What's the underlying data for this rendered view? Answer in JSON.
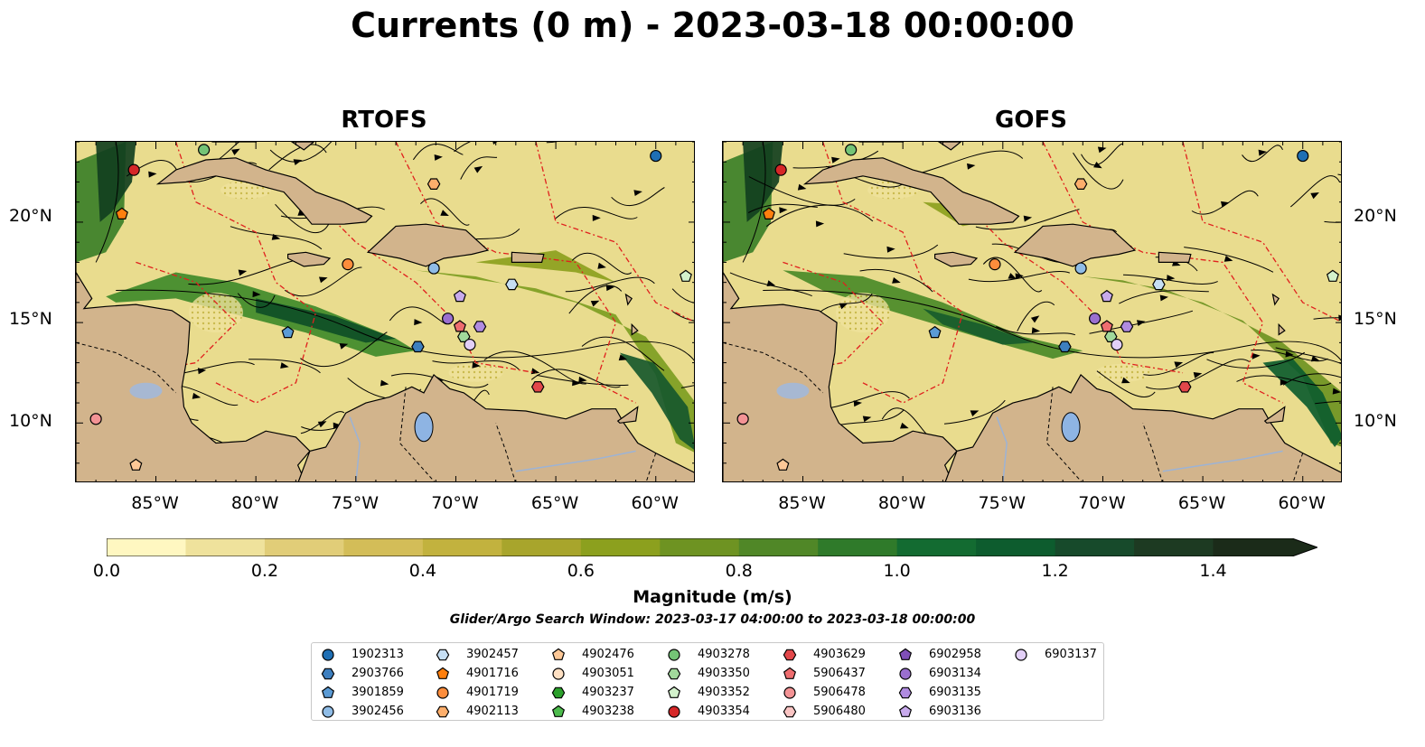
{
  "title": "Currents (0 m) - 2023-03-18 00:00:00",
  "panels": [
    {
      "title": "RTOFS"
    },
    {
      "title": "GOFS"
    }
  ],
  "x_ticks": [
    "85°W",
    "80°W",
    "75°W",
    "70°W",
    "65°W",
    "60°W"
  ],
  "y_ticks": [
    "20°N",
    "15°N",
    "10°N"
  ],
  "colorbar": {
    "label": "Magnitude (m/s)",
    "ticks": [
      "0.0",
      "0.2",
      "0.4",
      "0.6",
      "0.8",
      "1.0",
      "1.2",
      "1.4"
    ],
    "range": [
      0,
      1.5
    ],
    "extend": "max",
    "colors": [
      "#fff7c1",
      "#efe29c",
      "#e1cd78",
      "#d3bd58",
      "#c2b23e",
      "#a8a52c",
      "#8ca01e",
      "#6e9322",
      "#508727",
      "#2f7a2a",
      "#136b31",
      "#0d5c2e",
      "#174a2b",
      "#1d3a22",
      "#1b2b19"
    ]
  },
  "search_window": "Glider/Argo Search Window: 2023-03-17 04:00:00 to 2023-03-18 00:00:00",
  "legend": [
    {
      "label": "1902313",
      "marker": "circle",
      "color": "#1f6fb4"
    },
    {
      "label": "2903766",
      "marker": "hexagon",
      "color": "#3d7fbf"
    },
    {
      "label": "3901859",
      "marker": "pentagon",
      "color": "#5b9bd5"
    },
    {
      "label": "3902456",
      "marker": "circle",
      "color": "#8fbce6"
    },
    {
      "label": "3902457",
      "marker": "hexagon",
      "color": "#c6dff4"
    },
    {
      "label": "4901716",
      "marker": "pentagon",
      "color": "#ff7f0e"
    },
    {
      "label": "4901719",
      "marker": "circle",
      "color": "#fd8d3c"
    },
    {
      "label": "4902113",
      "marker": "hexagon",
      "color": "#fdae6b"
    },
    {
      "label": "4902476",
      "marker": "pentagon",
      "color": "#fdc897"
    },
    {
      "label": "4903051",
      "marker": "circle",
      "color": "#fee0c3"
    },
    {
      "label": "4903237",
      "marker": "hexagon",
      "color": "#2ca02c"
    },
    {
      "label": "4903238",
      "marker": "pentagon",
      "color": "#4cbb4c"
    },
    {
      "label": "4903278",
      "marker": "circle",
      "color": "#74c476"
    },
    {
      "label": "4903350",
      "marker": "hexagon",
      "color": "#a1d99b"
    },
    {
      "label": "4903352",
      "marker": "pentagon",
      "color": "#d3f2cc"
    },
    {
      "label": "4903354",
      "marker": "circle",
      "color": "#d62728"
    },
    {
      "label": "4903629",
      "marker": "hexagon",
      "color": "#e2474a"
    },
    {
      "label": "5906437",
      "marker": "pentagon",
      "color": "#ee6d6f"
    },
    {
      "label": "5906478",
      "marker": "circle",
      "color": "#f39395"
    },
    {
      "label": "5906480",
      "marker": "hexagon",
      "color": "#f9c4c3"
    },
    {
      "label": "6902958",
      "marker": "pentagon",
      "color": "#7f4fb8"
    },
    {
      "label": "6903134",
      "marker": "circle",
      "color": "#9a6fcf"
    },
    {
      "label": "6903135",
      "marker": "hexagon",
      "color": "#b08be0"
    },
    {
      "label": "6903136",
      "marker": "pentagon",
      "color": "#c8aaec"
    },
    {
      "label": "6903137",
      "marker": "circle",
      "color": "#e2cff7"
    }
  ],
  "floats": [
    {
      "id": "1902313",
      "lon": -60.0,
      "lat": 23.3
    },
    {
      "id": "4903278",
      "lon": -82.6,
      "lat": 23.6
    },
    {
      "id": "4903354",
      "lon": -86.1,
      "lat": 22.6
    },
    {
      "id": "4901716",
      "lon": -86.7,
      "lat": 20.4
    },
    {
      "id": "4902113",
      "lon": -71.1,
      "lat": 21.9
    },
    {
      "id": "4901719",
      "lon": -75.4,
      "lat": 17.9
    },
    {
      "id": "3902456",
      "lon": -71.1,
      "lat": 17.7
    },
    {
      "id": "3902457",
      "lon": -67.2,
      "lat": 16.9
    },
    {
      "id": "4903352",
      "lon": -58.5,
      "lat": 17.3
    },
    {
      "id": "6903136",
      "lon": -69.8,
      "lat": 16.3
    },
    {
      "id": "6903134",
      "lon": -70.4,
      "lat": 15.2
    },
    {
      "id": "5906437",
      "lon": -69.8,
      "lat": 14.8
    },
    {
      "id": "6903135",
      "lon": -68.8,
      "lat": 14.8
    },
    {
      "id": "4903350",
      "lon": -69.6,
      "lat": 14.3
    },
    {
      "id": "6903137",
      "lon": -69.3,
      "lat": 13.9
    },
    {
      "id": "2903766",
      "lon": -71.9,
      "lat": 13.8
    },
    {
      "id": "3901859",
      "lon": -78.4,
      "lat": 14.5
    },
    {
      "id": "4903629",
      "lon": -65.9,
      "lat": 11.8
    },
    {
      "id": "5906478",
      "lon": -88.0,
      "lat": 10.2
    },
    {
      "id": "4902476",
      "lon": -86.0,
      "lat": 7.9
    }
  ]
}
